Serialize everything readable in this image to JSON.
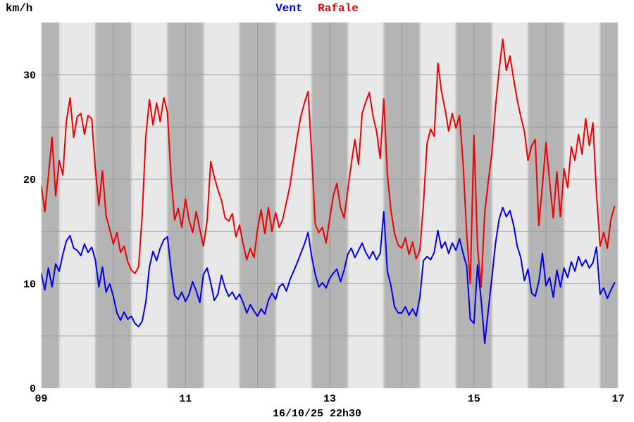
{
  "header": {
    "unit_label": "km/h"
  },
  "footer": {
    "timestamp": "16/10/25 22h30"
  },
  "chart_data": {
    "type": "line",
    "title": "Vent Rafale",
    "ylabel": "km/h",
    "xlabel": "",
    "x_unit": "hour_of_day",
    "xlim": [
      9,
      17
    ],
    "ylim": [
      0,
      35
    ],
    "x_ticks": [
      {
        "value": 9,
        "label": "09"
      },
      {
        "value": 11,
        "label": "11"
      },
      {
        "value": 13,
        "label": "13"
      },
      {
        "value": 15,
        "label": "15"
      },
      {
        "value": 17,
        "label": "17"
      }
    ],
    "y_ticks": [
      {
        "value": 0,
        "label": "0"
      },
      {
        "value": 10,
        "label": "10"
      },
      {
        "value": 20,
        "label": "20"
      },
      {
        "value": 30,
        "label": "30"
      }
    ],
    "x_gridlines": [
      10,
      11,
      12,
      13,
      14,
      15,
      16
    ],
    "y_gridlines": [
      5,
      10,
      15,
      20,
      25,
      30
    ],
    "grid_color": "#999999",
    "stripes": {
      "interval_minutes": 30,
      "dark_centered_on_hours": true,
      "light": "#e8e8e8",
      "dark": "#b4b4b4"
    },
    "legend_position": "top-center",
    "annotation": "16/10/25 22h30",
    "x_start": 9.0,
    "x_step": 0.05,
    "series": [
      {
        "name": "Vent",
        "color": "#0000f0",
        "values": [
          11.0,
          9.4,
          11.5,
          9.7,
          11.9,
          11.2,
          12.8,
          14.1,
          14.6,
          13.4,
          13.2,
          12.7,
          13.8,
          13.0,
          13.5,
          12.3,
          9.7,
          11.6,
          9.2,
          10.0,
          8.8,
          7.2,
          6.5,
          7.3,
          6.6,
          6.9,
          6.2,
          5.9,
          6.4,
          8.2,
          11.6,
          13.1,
          12.2,
          13.4,
          14.2,
          14.5,
          11.4,
          8.9,
          8.5,
          9.2,
          8.3,
          9.0,
          10.2,
          9.3,
          8.2,
          10.9,
          11.5,
          10.1,
          8.4,
          9.0,
          10.8,
          9.6,
          8.8,
          9.2,
          8.5,
          9.0,
          8.2,
          7.2,
          8.0,
          7.4,
          6.9,
          7.6,
          7.1,
          8.4,
          9.1,
          8.5,
          9.7,
          10.0,
          9.3,
          10.4,
          11.2,
          12.0,
          12.9,
          13.8,
          14.9,
          12.6,
          10.9,
          9.7,
          10.1,
          9.6,
          10.5,
          11.0,
          11.4,
          10.2,
          11.3,
          12.8,
          13.4,
          12.5,
          13.2,
          13.9,
          13.0,
          12.4,
          13.1,
          12.3,
          12.9,
          16.9,
          11.2,
          9.8,
          7.8,
          7.2,
          7.2,
          7.8,
          7.0,
          7.6,
          6.9,
          8.7,
          12.2,
          12.6,
          12.3,
          13.0,
          15.1,
          13.4,
          14.0,
          12.9,
          13.9,
          13.2,
          14.3,
          12.9,
          11.7,
          6.6,
          6.2,
          11.8,
          8.5,
          4.3,
          7.5,
          10.6,
          13.9,
          16.2,
          17.3,
          16.4,
          17.0,
          15.6,
          13.6,
          12.5,
          10.3,
          11.4,
          9.1,
          8.8,
          10.2,
          12.9,
          9.8,
          10.6,
          8.7,
          11.3,
          9.7,
          11.5,
          10.6,
          12.1,
          11.2,
          12.6,
          11.7,
          12.3,
          11.5,
          12.0,
          13.5,
          9.0,
          9.6,
          8.6,
          9.4,
          10.1
        ]
      },
      {
        "name": "Rafale",
        "color": "#f00000",
        "values": [
          19.4,
          16.9,
          20.3,
          24.0,
          18.4,
          21.8,
          20.4,
          25.6,
          27.8,
          24.0,
          26.0,
          26.3,
          24.3,
          26.1,
          25.8,
          21.0,
          17.5,
          20.8,
          16.5,
          15.2,
          13.8,
          14.9,
          13.0,
          13.6,
          12.1,
          11.3,
          11.0,
          11.6,
          16.5,
          24.0,
          27.6,
          25.2,
          27.3,
          25.5,
          27.8,
          26.4,
          20.2,
          16.1,
          17.2,
          15.4,
          18.1,
          16.1,
          14.9,
          16.9,
          15.2,
          13.6,
          16.0,
          21.7,
          20.2,
          19.0,
          18.0,
          16.3,
          16.0,
          16.7,
          14.5,
          15.6,
          13.8,
          12.3,
          13.4,
          12.5,
          15.2,
          17.1,
          14.8,
          17.3,
          15.0,
          16.8,
          15.4,
          16.2,
          17.8,
          19.4,
          21.8,
          24.0,
          26.0,
          27.3,
          28.4,
          22.5,
          15.7,
          14.9,
          15.4,
          13.9,
          16.2,
          18.4,
          19.6,
          17.3,
          16.3,
          18.9,
          21.5,
          23.8,
          21.4,
          26.3,
          27.4,
          28.3,
          26.1,
          24.6,
          22.0,
          27.7,
          20.5,
          17.0,
          14.8,
          13.7,
          13.4,
          14.4,
          12.8,
          14.0,
          12.4,
          13.2,
          17.6,
          23.4,
          24.8,
          24.1,
          31.1,
          28.4,
          26.7,
          24.6,
          26.3,
          24.9,
          26.1,
          21.5,
          14.8,
          10.0,
          24.2,
          13.5,
          9.7,
          16.8,
          19.8,
          22.5,
          27.0,
          30.5,
          33.4,
          30.4,
          31.8,
          29.6,
          27.6,
          26.0,
          24.6,
          21.8,
          23.2,
          23.8,
          15.6,
          19.4,
          23.5,
          19.8,
          16.3,
          20.7,
          16.4,
          21.0,
          19.2,
          23.1,
          21.8,
          24.3,
          22.4,
          25.8,
          23.2,
          25.4,
          18.6,
          13.6,
          14.9,
          13.4,
          16.2,
          17.4
        ]
      }
    ]
  }
}
